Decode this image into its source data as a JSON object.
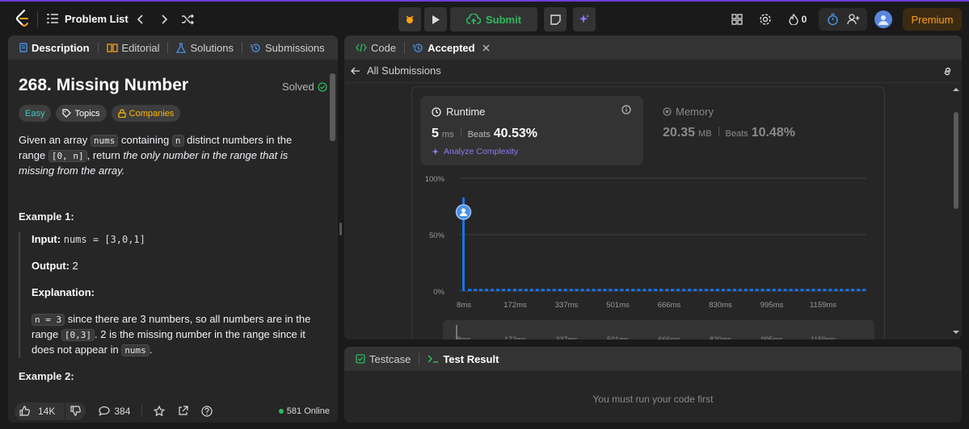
{
  "header": {
    "problem_list": "Problem List",
    "submit": "Submit",
    "fire_count": "0",
    "premium": "Premium"
  },
  "left": {
    "tabs": [
      {
        "label": "Description"
      },
      {
        "label": "Editorial"
      },
      {
        "label": "Solutions"
      },
      {
        "label": "Submissions"
      }
    ],
    "title": "268. Missing Number",
    "solved": "Solved",
    "chips": {
      "difficulty": "Easy",
      "topics": "Topics",
      "companies": "Companies"
    },
    "statement": {
      "p1": "Given an array ",
      "c1": "nums",
      "p2": " containing ",
      "c2": "n",
      "p3": " distinct numbers in the range ",
      "c3": "[0, n]",
      "p4": ", return ",
      "em": "the only number in the range that is missing from the array."
    },
    "example1": {
      "heading": "Example 1:",
      "input_label": "Input:",
      "input_value": "nums = [3,0,1]",
      "output_label": "Output:",
      "output_value": "2",
      "explanation_label": "Explanation:",
      "e_c1": "n = 3",
      "e_p1": " since there are 3 numbers, so all numbers are in the range ",
      "e_c2": "[0,3]",
      "e_p2": ". 2 is the missing number in the range since it does not appear in ",
      "e_c3": "nums",
      "e_p3": "."
    },
    "example2_heading": "Example 2:",
    "bottom": {
      "likes": "14K",
      "comments": "384",
      "online": "581 Online"
    }
  },
  "right": {
    "tabs": [
      {
        "label": "Code"
      },
      {
        "label": "Accepted"
      }
    ],
    "all_submissions": "All Submissions",
    "runtime": {
      "label": "Runtime",
      "value": "5",
      "unit": "ms",
      "beats_label": "Beats",
      "beats": "40.53%",
      "analyze": "Analyze Complexity"
    },
    "memory": {
      "label": "Memory",
      "value": "20.35",
      "unit": "MB",
      "beats_label": "Beats",
      "beats": "10.48%"
    },
    "bottom_tabs": [
      {
        "label": "Testcase"
      },
      {
        "label": "Test Result"
      }
    ],
    "empty_message": "You must run your code first"
  },
  "chart_data": {
    "type": "bar",
    "y_ticks": [
      "100%",
      "50%",
      "0%"
    ],
    "x_ticks": [
      "8ms",
      "172ms",
      "337ms",
      "501ms",
      "666ms",
      "830ms",
      "995ms",
      "1159ms"
    ],
    "ylim": [
      0,
      100
    ],
    "highlight_bar_value": 83,
    "baseline_bar_value": 2,
    "bar_count": 72,
    "colors": {
      "bar": "#1a73e8",
      "highlight": "#4a90e2"
    }
  }
}
